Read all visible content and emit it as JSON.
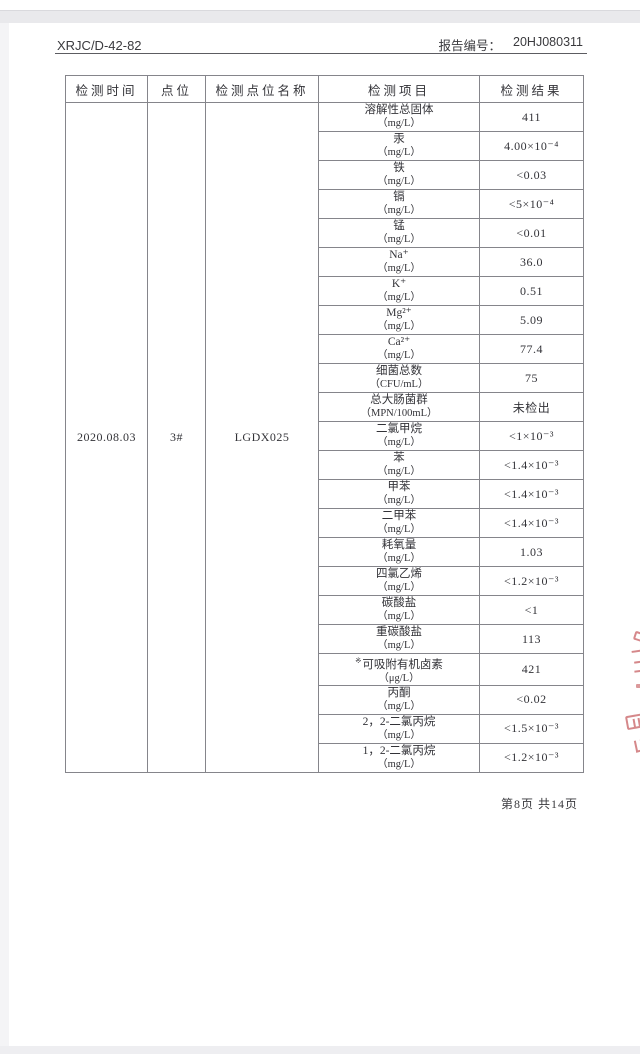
{
  "page": {
    "doc_code": "XRJC/D-42-82",
    "report_no_label": "报告编号：",
    "report_no": "20HJ080311",
    "footer": "第8页 共14页"
  },
  "colors": {
    "text": "#36363b",
    "table_border": "#85858b",
    "stamp_red": "#c4565a",
    "scan_band": "#e9e9ec"
  },
  "table": {
    "headers": [
      "检测时间",
      "点位",
      "检测点位名称",
      "检测项目",
      "检测结果"
    ],
    "sample": {
      "time": "2020.08.03",
      "point": "3#",
      "point_name": "LGDX025"
    },
    "rows": [
      {
        "item": "溶解性总固体",
        "unit": "（mg/L）",
        "result": "411"
      },
      {
        "item": "汞",
        "unit": "（mg/L）",
        "result": "4.00×10⁻⁴"
      },
      {
        "item": "铁",
        "unit": "（mg/L）",
        "result": "<0.03"
      },
      {
        "item": "镉",
        "unit": "（mg/L）",
        "result": "<5×10⁻⁴"
      },
      {
        "item": "锰",
        "unit": "（mg/L）",
        "result": "<0.01"
      },
      {
        "item": "Na⁺",
        "unit": "（mg/L）",
        "result": "36.0"
      },
      {
        "item": "K⁺",
        "unit": "（mg/L）",
        "result": "0.51"
      },
      {
        "item": "Mg²⁺",
        "unit": "（mg/L）",
        "result": "5.09"
      },
      {
        "item": "Ca²⁺",
        "unit": "（mg/L）",
        "result": "77.4"
      },
      {
        "item": "细菌总数",
        "unit": "（CFU/mL）",
        "result": "75"
      },
      {
        "item": "总大肠菌群",
        "unit": "（MPN/100mL）",
        "result": "未检出"
      },
      {
        "item": "二氯甲烷",
        "unit": "（mg/L）",
        "result": "<1×10⁻³"
      },
      {
        "item": "苯",
        "unit": "（mg/L）",
        "result": "<1.4×10⁻³"
      },
      {
        "item": "甲苯",
        "unit": "（mg/L）",
        "result": "<1.4×10⁻³"
      },
      {
        "item": "二甲苯",
        "unit": "（mg/L）",
        "result": "<1.4×10⁻³"
      },
      {
        "item": "耗氧量",
        "unit": "（mg/L）",
        "result": "1.03"
      },
      {
        "item": "四氯乙烯",
        "unit": "（mg/L）",
        "result": "<1.2×10⁻³"
      },
      {
        "item": "碳酸盐",
        "unit": "（mg/L）",
        "result": "<1"
      },
      {
        "item": "重碳酸盐",
        "unit": "（mg/L）",
        "result": "113"
      },
      {
        "item": "可吸附有机卤素",
        "item_prefix_sup": "※",
        "unit": "（μg/L）",
        "result": "421"
      },
      {
        "item": "丙酮",
        "unit": "（mg/L）",
        "result": "<0.02"
      },
      {
        "item": "2，2-二氯丙烷",
        "unit": "（mg/L）",
        "result": "<1.5×10⁻³"
      },
      {
        "item": "1，2-二氯丙烷",
        "unit": "（mg/L）",
        "result": "<1.2×10⁻³"
      }
    ]
  }
}
